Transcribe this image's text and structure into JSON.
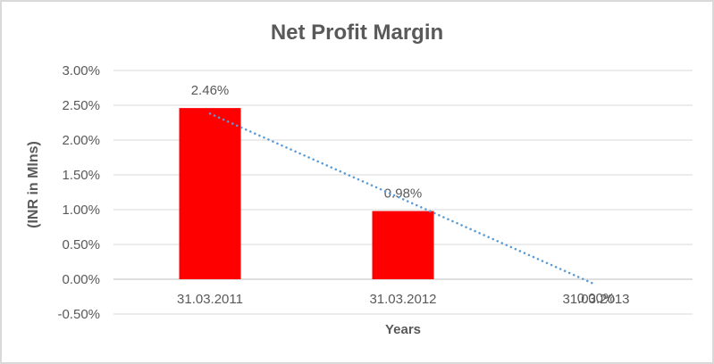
{
  "chart_data": {
    "type": "bar",
    "title": "Net Profit Margin",
    "xlabel": "Years",
    "ylabel": "(INR in Mlns)",
    "categories": [
      "31.03.2011",
      "31.03.2012",
      "31.03.2013"
    ],
    "values": [
      2.46,
      0.98,
      0.0
    ],
    "data_labels": [
      "2.46%",
      "0.98%",
      "0.00%"
    ],
    "value_unit": "percent",
    "ylim": [
      -0.5,
      3.0
    ],
    "ytick_step": 0.5,
    "yticks": [
      {
        "value": 3.0,
        "label": "3.00%"
      },
      {
        "value": 2.5,
        "label": "2.50%"
      },
      {
        "value": 2.0,
        "label": "2.00%"
      },
      {
        "value": 1.5,
        "label": "1.50%"
      },
      {
        "value": 1.0,
        "label": "1.00%"
      },
      {
        "value": 0.5,
        "label": "0.50%"
      },
      {
        "value": 0.0,
        "label": "0.00%"
      },
      {
        "value": -0.5,
        "label": "-0.50%"
      }
    ],
    "grid": true,
    "legend": "none",
    "trendline": {
      "shape": "linear",
      "line_style": "dotted",
      "start": {
        "category_index": 0,
        "value": 2.38
      },
      "end": {
        "category_index": 2,
        "value": -0.08
      }
    },
    "colors": {
      "bar": "#ff0000",
      "trendline": "#5b9bd5",
      "gridline": "#d9d9d9",
      "zero_axis_line": "#bfbfbf",
      "text": "#595959",
      "frame_border": "#d9d9d9",
      "background": "#ffffff"
    }
  }
}
